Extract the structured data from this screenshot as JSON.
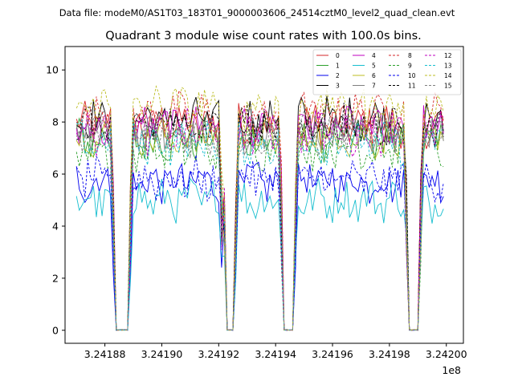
{
  "chart_data": {
    "type": "line",
    "suptitle": "Data file: modeM0/AS1T03_183T01_9000003606_24514cztM0_level2_quad_clean.evt",
    "title": "Quadrant 3 module wise count rates with 100.0s bins.",
    "xlabel": "",
    "ylabel": "",
    "x_offset_label": "1e8",
    "xlim": [
      3.241866,
      3.242006
    ],
    "ylim": [
      -0.5,
      10.9
    ],
    "x_ticks": [
      3.24188,
      3.2419,
      3.24192,
      3.24194,
      3.24196,
      3.24198,
      3.242
    ],
    "x_tick_labels": [
      "3.24188",
      "3.24190",
      "3.24192",
      "3.24194",
      "3.24196",
      "3.24198",
      "3.24200"
    ],
    "y_ticks": [
      0,
      2,
      4,
      6,
      8,
      10
    ],
    "y_tick_labels": [
      "0",
      "2",
      "4",
      "6",
      "8",
      "10"
    ],
    "x_start": 3.24187,
    "bin_width": 1e-06,
    "gap_windows": [
      {
        "start": 3.2418837,
        "end": 3.2418884
      },
      {
        "start": 3.2419222,
        "end": 3.2419256
      },
      {
        "start": 3.2419424,
        "end": 3.2419464
      },
      {
        "start": 3.2419863,
        "end": 3.2419904
      }
    ],
    "legend": {
      "placement": "top-right",
      "columns": 4
    },
    "series": [
      {
        "name": "0",
        "color": "#d62728",
        "dash": "solid",
        "level": 7.9
      },
      {
        "name": "1",
        "color": "#2ca02c",
        "dash": "solid",
        "level": 7.3
      },
      {
        "name": "2",
        "color": "#0000ee",
        "dash": "solid",
        "level": 5.7
      },
      {
        "name": "3",
        "color": "#000000",
        "dash": "solid",
        "level": 8.1
      },
      {
        "name": "4",
        "color": "#c000c0",
        "dash": "solid",
        "level": 7.8
      },
      {
        "name": "5",
        "color": "#17becf",
        "dash": "solid",
        "level": 5.0
      },
      {
        "name": "6",
        "color": "#bcbd22",
        "dash": "solid",
        "level": 7.4
      },
      {
        "name": "7",
        "color": "#7f7f7f",
        "dash": "solid",
        "level": 7.6
      },
      {
        "name": "8",
        "color": "#d62728",
        "dash": "dashed",
        "level": 8.3
      },
      {
        "name": "9",
        "color": "#2ca02c",
        "dash": "dashed",
        "level": 7.0
      },
      {
        "name": "10",
        "color": "#0000ee",
        "dash": "dashed",
        "level": 5.8
      },
      {
        "name": "11",
        "color": "#000000",
        "dash": "dashed",
        "level": 7.9
      },
      {
        "name": "12",
        "color": "#c000c0",
        "dash": "dashed",
        "level": 7.6
      },
      {
        "name": "13",
        "color": "#17becf",
        "dash": "dashed",
        "level": 7.2
      },
      {
        "name": "14",
        "color": "#bcbd22",
        "dash": "dashed",
        "level": 8.6
      },
      {
        "name": "15",
        "color": "#7f7f7f",
        "dash": "dashed",
        "level": 7.5
      }
    ]
  }
}
